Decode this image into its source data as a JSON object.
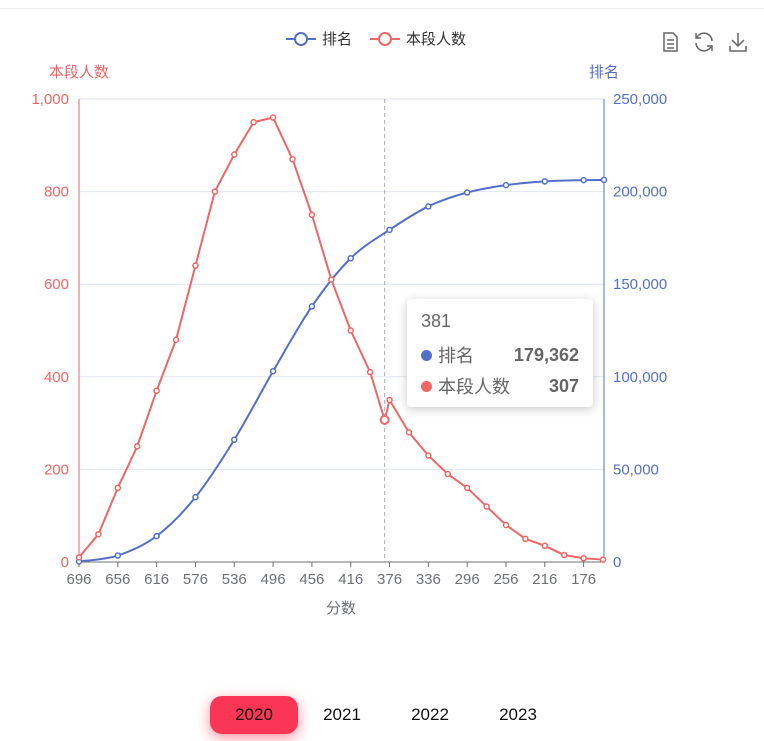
{
  "legend": [
    {
      "label": "排名",
      "color": "#5470c6"
    },
    {
      "label": "本段人数",
      "color": "#ee6666"
    }
  ],
  "toolbox": {
    "icons": [
      "data-view-icon",
      "refresh-icon",
      "download-icon"
    ]
  },
  "chart_data": {
    "type": "line",
    "x": [
      696,
      656,
      616,
      576,
      536,
      496,
      456,
      416,
      376,
      336,
      296,
      256,
      216,
      176
    ],
    "xlabel": "分数",
    "y_left": {
      "label": "本段人数",
      "ticks": [
        "0",
        "200",
        "400",
        "600",
        "800",
        "1,000"
      ],
      "range": [
        0,
        1000
      ],
      "color": "#ee6666"
    },
    "y_right": {
      "label": "排名",
      "ticks": [
        "0",
        "50,000",
        "100,000",
        "150,000",
        "200,000",
        "250,000"
      ],
      "range": [
        0,
        250000
      ],
      "color": "#5470c6"
    },
    "x_range": [
      696,
      155
    ],
    "grid": true,
    "series": [
      {
        "name": "排名",
        "axis": "right",
        "color": "#5470c6",
        "x": [
          696,
          656,
          616,
          576,
          536,
          496,
          456,
          416,
          376,
          336,
          296,
          256,
          216,
          176,
          155
        ],
        "values": [
          300,
          3500,
          14000,
          35000,
          66000,
          103000,
          138000,
          164000,
          179362,
          192000,
          199500,
          203500,
          205500,
          206200,
          206300
        ]
      },
      {
        "name": "本段人数",
        "axis": "left",
        "color": "#ee6666",
        "x": [
          696,
          676,
          656,
          636,
          616,
          596,
          576,
          556,
          536,
          516,
          496,
          476,
          456,
          436,
          416,
          396,
          381,
          376,
          356,
          336,
          316,
          296,
          276,
          256,
          236,
          216,
          196,
          176,
          156
        ],
        "values": [
          10,
          60,
          160,
          250,
          370,
          480,
          640,
          800,
          880,
          950,
          960,
          870,
          750,
          610,
          500,
          410,
          307,
          350,
          280,
          230,
          190,
          160,
          120,
          80,
          50,
          35,
          15,
          8,
          5
        ]
      }
    ],
    "tooltip": {
      "x": "381",
      "items": [
        {
          "name": "排名",
          "value": "179,362",
          "color": "#5470c6"
        },
        {
          "name": "本段人数",
          "value": "307",
          "color": "#ee6666"
        }
      ]
    }
  },
  "years": {
    "items": [
      "2020",
      "2021",
      "2022",
      "2023"
    ],
    "selected": "2020"
  }
}
